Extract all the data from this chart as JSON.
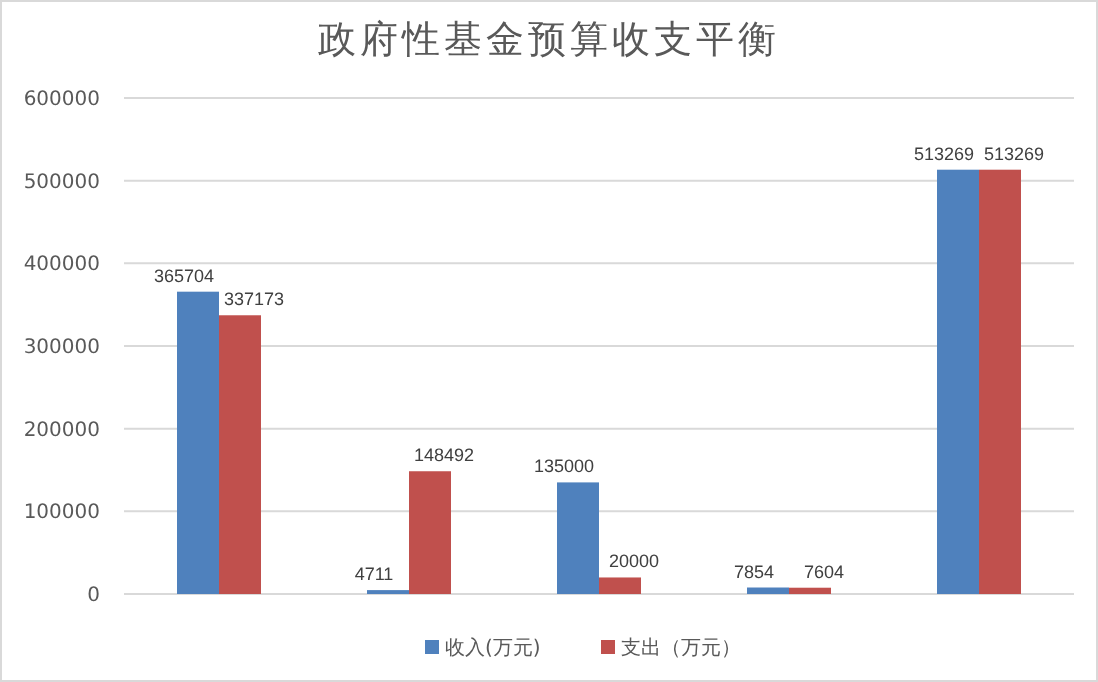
{
  "chart_data": {
    "type": "bar",
    "title": "政府性基金预算收支平衡",
    "categories": [
      null,
      null,
      null,
      null,
      null
    ],
    "series": [
      {
        "name": "收入(万元)",
        "color": "#4f81bd",
        "values": [
          365704,
          4711,
          135000,
          7854,
          513269
        ]
      },
      {
        "name": "支出（万元）",
        "color": "#c0504d",
        "values": [
          337173,
          148492,
          20000,
          7604,
          513269
        ]
      }
    ],
    "ylim": [
      0,
      600000
    ],
    "yticks": [
      0,
      100000,
      200000,
      300000,
      400000,
      500000,
      600000
    ],
    "grid": "y",
    "legend": "bottom",
    "data_labels": true
  }
}
